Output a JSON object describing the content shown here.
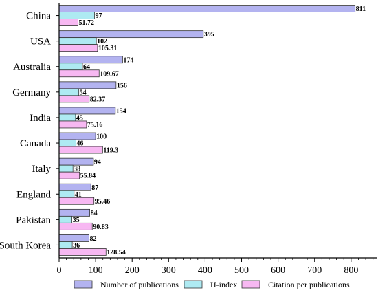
{
  "chart_data": {
    "type": "bar",
    "orientation": "horizontal",
    "categories": [
      "China",
      "USA",
      "Australia",
      "Germany",
      "India",
      "Canada",
      "Italy",
      "England",
      "Pakistan",
      "South Korea"
    ],
    "series": [
      {
        "name": "Number of publications",
        "color": "#b3b3f0",
        "values": [
          811,
          395,
          174,
          156,
          154,
          100,
          94,
          87,
          84,
          82
        ],
        "labels": [
          "811",
          "395",
          "174",
          "156",
          "154",
          "100",
          "94",
          "87",
          "84",
          "82"
        ]
      },
      {
        "name": "H-index",
        "color": "#aeeaf2",
        "values": [
          97,
          102,
          64,
          54,
          45,
          46,
          38,
          41,
          35,
          36
        ],
        "labels": [
          "97",
          "102",
          "64",
          "54",
          "45",
          "46",
          "38",
          "41",
          "35",
          "36"
        ]
      },
      {
        "name": "Citation per publications",
        "color": "#f7b8f2",
        "values": [
          51.72,
          105.31,
          109.67,
          82.37,
          75.16,
          119.3,
          55.84,
          95.46,
          90.83,
          128.54
        ],
        "labels": [
          "51.72",
          "105.31",
          "109.67",
          "82.37",
          "75.16",
          "119.3",
          "55.84",
          "95.46",
          "90.83",
          "128.54"
        ]
      }
    ],
    "xlim": [
      0,
      870
    ],
    "xticks": [
      0,
      100,
      200,
      300,
      400,
      500,
      600,
      700,
      800
    ],
    "xtick_labels": [
      "0",
      "100",
      "200",
      "300",
      "400",
      "500",
      "600",
      "700",
      "800"
    ],
    "grid": false,
    "legend_position": "bottom"
  }
}
